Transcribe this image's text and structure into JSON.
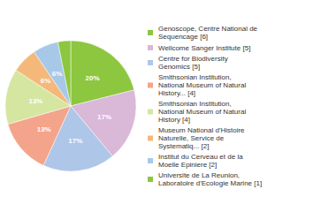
{
  "chart_data": {
    "type": "pie",
    "categories": [
      "Genoscope, Centre National de\nSequencage [6]",
      "Wellcome Sanger Institute [5]",
      "Centre for Biodiversity\nGenomics [5]",
      "Smithsonian Institution,\nNational Museum of Natural\nHistory... [4]",
      "Smithsonian Institution,\nNational Museum of Natural\nHistory [4]",
      "Museum National d'Histoire\nNaturelle, Service de\nSystematiq... [2]",
      "Institut du Cerveau et de la\nMoelle Epiniere [2]",
      "Universite de La Reunion,\nLaboratoire d'Ecologie Marine [1]"
    ],
    "values": [
      20,
      17,
      17,
      13,
      13,
      6,
      6,
      3
    ],
    "value_labels": [
      "20%",
      "17%",
      "17%",
      "13%",
      "13%",
      "6%",
      "6%",
      null
    ],
    "colors": [
      "#8dc63f",
      "#d9b8d8",
      "#aec6e8",
      "#f4a48a",
      "#d4e6a0",
      "#f4b97a",
      "#a8c8e8",
      "#8dc63f"
    ],
    "data_labels": true,
    "legend": "right"
  }
}
